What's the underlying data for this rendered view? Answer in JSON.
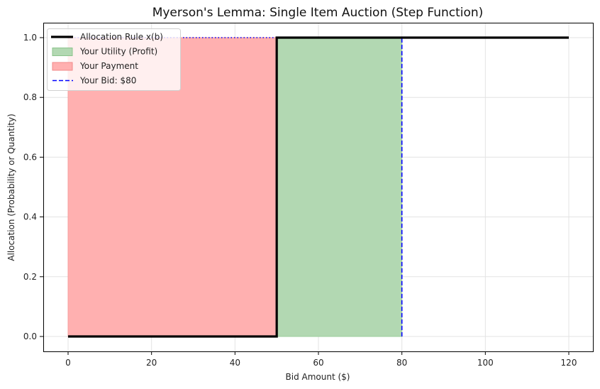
{
  "chart_data": {
    "type": "line",
    "title": "Myerson's Lemma: Single Item Auction (Step Function)",
    "xlabel": "Bid Amount ($)",
    "ylabel": "Allocation (Probability or Quantity)",
    "xlim": [
      -5,
      126
    ],
    "ylim": [
      -0.05,
      1.05
    ],
    "xticks": [
      0,
      20,
      40,
      60,
      80,
      100,
      120
    ],
    "yticks": [
      0.0,
      0.2,
      0.4,
      0.6,
      0.8,
      1.0
    ],
    "xtick_labels": [
      "0",
      "20",
      "40",
      "60",
      "80",
      "100",
      "120"
    ],
    "ytick_labels": [
      "0.0",
      "0.2",
      "0.4",
      "0.6",
      "0.8",
      "1.0"
    ],
    "grid": true,
    "legend_position": "upper left",
    "series": [
      {
        "name": "Allocation Rule x(b)",
        "kind": "step-line",
        "color": "#000000",
        "x": [
          0,
          50,
          50,
          120
        ],
        "y": [
          0,
          0,
          1,
          1
        ]
      },
      {
        "name": "Your Utility (Profit)",
        "kind": "fill",
        "color": "#2ca02c",
        "alpha": 0.36,
        "x_range": [
          50,
          80
        ],
        "y_range": [
          0,
          1
        ]
      },
      {
        "name": "Your Payment",
        "kind": "fill",
        "color": "#ff6b6b",
        "alpha": 0.52,
        "x_range": [
          0,
          50
        ],
        "y_range": [
          0,
          1
        ]
      },
      {
        "name": "Your Bid: $80",
        "kind": "vline-dashed",
        "color": "#0000ff",
        "x": 80,
        "y_range": [
          0,
          1
        ]
      },
      {
        "name": "",
        "kind": "hline-dotted",
        "color": "#0000ff",
        "y": 1,
        "x_range": [
          0,
          80
        ]
      }
    ],
    "annotations": {
      "threshold_bid": 50,
      "your_bid": 80,
      "payment": 50,
      "utility": 30
    }
  },
  "legend": {
    "items": [
      {
        "label": "Allocation Rule x(b)",
        "swatch": "line",
        "color": "#000000"
      },
      {
        "label": "Your Utility (Profit)",
        "swatch": "patch",
        "color": "#b2d8b2",
        "edge": "#8cc48c"
      },
      {
        "label": "Your Payment",
        "swatch": "patch",
        "color": "#ffb0b0",
        "edge": "#f08a8a"
      },
      {
        "label": "Your Bid: $80",
        "swatch": "dashed",
        "color": "#0000ff"
      }
    ]
  }
}
